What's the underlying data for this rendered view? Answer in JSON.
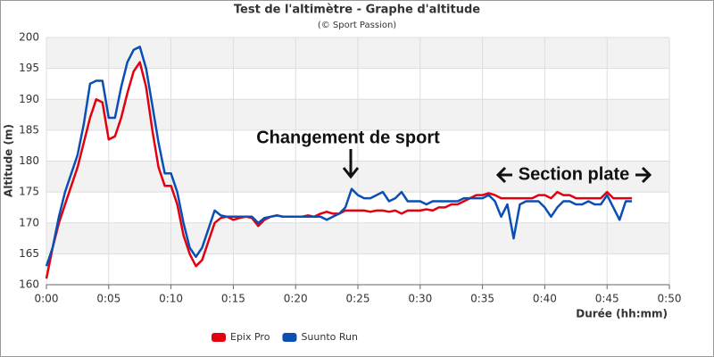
{
  "chart_data": {
    "type": "line",
    "title": "Test de l'altimètre - Graphe d'altitude",
    "subtitle": "(© Sport Passion)",
    "x_label": "Durée (hh:mm)",
    "y_label": "Altitude (m)",
    "annotations": [
      "Changement de sport",
      "Section plate"
    ],
    "x": [
      0,
      0.5,
      1,
      1.5,
      2,
      2.5,
      3,
      3.5,
      4,
      4.5,
      5,
      5.5,
      6,
      6.5,
      7,
      7.5,
      8,
      8.5,
      9,
      9.5,
      10,
      10.5,
      11,
      11.5,
      12,
      12.5,
      13,
      13.5,
      14,
      14.5,
      15,
      15.5,
      16,
      16.5,
      17,
      17.5,
      18,
      18.5,
      19,
      19.5,
      20,
      20.5,
      21,
      21.5,
      22,
      22.5,
      23,
      23.5,
      24,
      24.5,
      25,
      25.5,
      26,
      26.5,
      27,
      27.5,
      28,
      28.5,
      29,
      29.5,
      30,
      30.5,
      31,
      31.5,
      32,
      32.5,
      33,
      33.5,
      34,
      34.5,
      35,
      35.5,
      36,
      36.5,
      37,
      37.5,
      38,
      38.5,
      39,
      39.5,
      40,
      40.5,
      41,
      41.5,
      42,
      42.5,
      43,
      43.5,
      44,
      44.5,
      45,
      45.5,
      46,
      46.5,
      47
    ],
    "series": [
      {
        "name": "Epix Pro",
        "color": "#e3000f",
        "values": [
          161,
          166,
          170,
          173,
          176,
          179,
          183,
          187,
          190,
          189.5,
          183.5,
          184,
          187,
          191,
          194.5,
          196,
          192,
          185,
          179,
          176,
          176,
          173,
          168,
          165,
          163,
          164,
          167,
          170,
          170.8,
          171,
          170.5,
          170.8,
          171,
          170.8,
          169.5,
          170.5,
          171,
          171.2,
          171,
          171,
          171,
          171,
          171.2,
          171,
          171.5,
          171.8,
          171.5,
          171.5,
          172,
          172,
          172,
          172,
          171.8,
          172,
          172,
          171.8,
          172,
          171.5,
          172,
          172,
          172,
          172.2,
          172,
          172.5,
          172.5,
          173,
          173,
          173.5,
          174,
          174.5,
          174.5,
          174.8,
          174.5,
          174,
          174,
          174,
          174,
          174,
          174,
          174.5,
          174.5,
          174,
          175,
          174.5,
          174.5,
          174,
          174,
          174,
          174,
          174,
          175,
          174,
          174,
          174,
          174
        ]
      },
      {
        "name": "Suunto Run",
        "color": "#0a4fb4",
        "values": [
          163,
          166,
          171,
          175,
          178,
          181,
          186,
          192.5,
          193,
          193,
          187,
          187,
          192,
          196,
          198,
          198.5,
          195,
          189,
          183,
          178,
          178,
          175,
          170,
          166,
          164.5,
          166,
          169,
          172,
          171.2,
          171,
          171,
          171,
          171,
          171,
          170,
          170.8,
          171,
          171.2,
          171,
          171,
          171,
          171,
          171,
          171,
          171,
          170.5,
          171,
          171.5,
          172.5,
          175.5,
          174.5,
          174,
          174,
          174.5,
          175,
          173.5,
          174,
          175,
          173.5,
          173.5,
          173.5,
          173,
          173.5,
          173.5,
          173.5,
          173.5,
          173.5,
          174,
          174,
          174,
          174,
          174.5,
          173.5,
          171,
          173,
          167.5,
          173,
          173.5,
          173.5,
          173.5,
          172.5,
          171,
          172.5,
          173.5,
          173.5,
          173,
          173,
          173.5,
          173,
          173,
          174.5,
          172.5,
          170.5,
          173.5,
          173.5
        ]
      }
    ],
    "xlim": [
      0,
      50
    ],
    "ylim": [
      160,
      200
    ],
    "xticks": [
      {
        "value": 0,
        "label": "0:00"
      },
      {
        "value": 5,
        "label": "0:05"
      },
      {
        "value": 10,
        "label": "0:10"
      },
      {
        "value": 15,
        "label": "0:15"
      },
      {
        "value": 20,
        "label": "0:20"
      },
      {
        "value": 25,
        "label": "0:25"
      },
      {
        "value": 30,
        "label": "0:30"
      },
      {
        "value": 35,
        "label": "0:35"
      },
      {
        "value": 40,
        "label": "0:40"
      },
      {
        "value": 45,
        "label": "0:45"
      },
      {
        "value": 50,
        "label": "0:50"
      }
    ],
    "yticks": [
      160,
      165,
      170,
      175,
      180,
      185,
      190,
      195,
      200
    ],
    "grid": true,
    "legend": "bottom"
  }
}
